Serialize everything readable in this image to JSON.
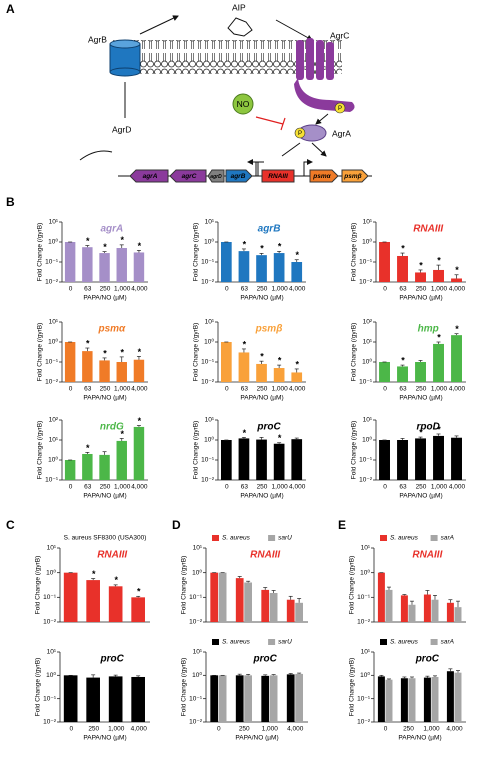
{
  "panel_labels": [
    "A",
    "B",
    "C",
    "D",
    "E"
  ],
  "diagram": {
    "signal": "AIP",
    "receptor": "AgrC",
    "exporter": "AgrB",
    "precursor": "AgrD",
    "inhibitor": "NO",
    "phospho_1": "P",
    "phospho_2": "P",
    "regulator": "AgrA",
    "genes": [
      "agrA",
      "agrC",
      "agrD",
      "agrB",
      "RNAIII",
      "psmα",
      "psmβ"
    ]
  },
  "chart_data": [
    {
      "type": "bar",
      "title": "agrA",
      "title_color": "#a58fc8",
      "color": "#a58fc8",
      "log_y": true,
      "categories": [
        "0",
        "63",
        "250",
        "1,000",
        "4,000"
      ],
      "values": [
        1,
        0.55,
        0.28,
        0.5,
        0.3
      ],
      "errors": [
        0,
        0.12,
        0.05,
        0.22,
        0.08
      ],
      "annotations": [
        {
          "category": "63",
          "text": "*"
        },
        {
          "category": "250",
          "text": "*"
        },
        {
          "category": "1,000",
          "text": "*"
        },
        {
          "category": "4,000",
          "text": "*"
        }
      ],
      "ylim": [
        0.01,
        10
      ],
      "yticks": [
        {
          "value": 0.01,
          "label": "10⁻²"
        },
        {
          "value": 0.1,
          "label": "10⁻¹"
        },
        {
          "value": 1,
          "label": "10⁰"
        },
        {
          "value": 10,
          "label": "10¹"
        }
      ],
      "ylabel": "Fold Change (/gyrB)",
      "xlabel": "PAPA/NO (µM)"
    },
    {
      "type": "bar",
      "title": "agrB",
      "title_color": "#1f77c0",
      "color": "#1f77c0",
      "log_y": true,
      "categories": [
        "0",
        "63",
        "250",
        "1,000",
        "4,000"
      ],
      "values": [
        1,
        0.35,
        0.22,
        0.28,
        0.1
      ],
      "errors": [
        0,
        0.1,
        0.05,
        0.06,
        0.03
      ],
      "annotations": [
        {
          "category": "63",
          "text": "*"
        },
        {
          "category": "250",
          "text": "*"
        },
        {
          "category": "1,000",
          "text": "*"
        },
        {
          "category": "4,000",
          "text": "*"
        }
      ],
      "ylim": [
        0.01,
        10
      ],
      "yticks": [
        {
          "value": 0.01,
          "label": "10⁻²"
        },
        {
          "value": 0.1,
          "label": "10⁻¹"
        },
        {
          "value": 1,
          "label": "10⁰"
        },
        {
          "value": 10,
          "label": "10¹"
        }
      ],
      "ylabel": "Fold Change (/gyrB)",
      "xlabel": "PAPA/NO (µM)"
    },
    {
      "type": "bar",
      "title": "RNAIII",
      "title_color": "#e8312a",
      "color": "#e8312a",
      "log_y": true,
      "categories": [
        "0",
        "63",
        "250",
        "1,000",
        "4,000"
      ],
      "values": [
        1,
        0.2,
        0.03,
        0.04,
        0.015
      ],
      "errors": [
        0,
        0.08,
        0.01,
        0.03,
        0.008
      ],
      "annotations": [
        {
          "category": "63",
          "text": "*"
        },
        {
          "category": "250",
          "text": "*"
        },
        {
          "category": "1,000",
          "text": "*"
        },
        {
          "category": "4,000",
          "text": "*"
        }
      ],
      "ylim": [
        0.01,
        10
      ],
      "yticks": [
        {
          "value": 0.01,
          "label": "10⁻²"
        },
        {
          "value": 0.1,
          "label": "10⁻¹"
        },
        {
          "value": 1,
          "label": "10⁰"
        },
        {
          "value": 10,
          "label": "10¹"
        }
      ],
      "ylabel": "Fold Change (/gyrB)",
      "xlabel": "PAPA/NO (µM)"
    },
    {
      "type": "bar",
      "title": "psmα",
      "title_color": "#f07b27",
      "color": "#f07b27",
      "log_y": true,
      "categories": [
        "0",
        "63",
        "250",
        "1,000",
        "4,000"
      ],
      "values": [
        1,
        0.35,
        0.12,
        0.1,
        0.13
      ],
      "errors": [
        0,
        0.15,
        0.04,
        0.08,
        0.06
      ],
      "annotations": [
        {
          "category": "63",
          "text": "*"
        },
        {
          "category": "250",
          "text": "*"
        },
        {
          "category": "1,000",
          "text": "*"
        },
        {
          "category": "4,000",
          "text": "*"
        }
      ],
      "ylim": [
        0.01,
        10
      ],
      "yticks": [
        {
          "value": 0.01,
          "label": "10⁻²"
        },
        {
          "value": 0.1,
          "label": "10⁻¹"
        },
        {
          "value": 1,
          "label": "10⁰"
        },
        {
          "value": 10,
          "label": "10¹"
        }
      ],
      "ylabel": "Fold Change (/gyrB)",
      "xlabel": "PAPA/NO (µM)"
    },
    {
      "type": "bar",
      "title": "psmβ",
      "title_color": "#f9a13a",
      "color": "#f9a13a",
      "log_y": true,
      "categories": [
        "0",
        "63",
        "250",
        "1,000",
        "4,000"
      ],
      "values": [
        1,
        0.3,
        0.08,
        0.05,
        0.03
      ],
      "errors": [
        0,
        0.15,
        0.03,
        0.02,
        0.015
      ],
      "annotations": [
        {
          "category": "63",
          "text": "*"
        },
        {
          "category": "250",
          "text": "*"
        },
        {
          "category": "1,000",
          "text": "*"
        },
        {
          "category": "4,000",
          "text": "*"
        }
      ],
      "ylim": [
        0.01,
        10
      ],
      "yticks": [
        {
          "value": 0.01,
          "label": "10⁻²"
        },
        {
          "value": 0.1,
          "label": "10⁻¹"
        },
        {
          "value": 1,
          "label": "10⁰"
        },
        {
          "value": 10,
          "label": "10¹"
        }
      ],
      "ylabel": "Fold Change (/gyrB)",
      "xlabel": "PAPA/NO (µM)"
    },
    {
      "type": "bar",
      "title": "hmp",
      "title_color": "#4cb748",
      "color": "#4cb748",
      "log_y": true,
      "categories": [
        "0",
        "63",
        "250",
        "1,000",
        "4,000"
      ],
      "values": [
        1,
        0.6,
        1,
        8,
        22
      ],
      "errors": [
        0,
        0.1,
        0.2,
        2,
        4
      ],
      "annotations": [
        {
          "category": "63",
          "text": "*"
        },
        {
          "category": "1,000",
          "text": "*"
        },
        {
          "category": "4,000",
          "text": "*"
        }
      ],
      "ylim": [
        0.1,
        100
      ],
      "yticks": [
        {
          "value": 0.1,
          "label": "10⁻¹"
        },
        {
          "value": 1,
          "label": "10⁰"
        },
        {
          "value": 10,
          "label": "10¹"
        },
        {
          "value": 100,
          "label": "10²"
        }
      ],
      "ylabel": "Fold Change (/gyrB)",
      "xlabel": "PAPA/NO (µM)"
    },
    {
      "type": "bar",
      "title": "nrdG",
      "title_color": "#4cb748",
      "color": "#4cb748",
      "log_y": true,
      "categories": [
        "0",
        "63",
        "250",
        "1,000",
        "4,000"
      ],
      "values": [
        1,
        2,
        1.8,
        9,
        45
      ],
      "errors": [
        0,
        0.4,
        0.8,
        3,
        8
      ],
      "annotations": [
        {
          "category": "63",
          "text": "*"
        },
        {
          "category": "1,000",
          "text": "*"
        },
        {
          "category": "4,000",
          "text": "*"
        }
      ],
      "ylim": [
        0.1,
        100
      ],
      "yticks": [
        {
          "value": 0.1,
          "label": "10⁻¹"
        },
        {
          "value": 1,
          "label": "10⁰"
        },
        {
          "value": 10,
          "label": "10¹"
        },
        {
          "value": 100,
          "label": "10²"
        }
      ],
      "ylabel": "Fold Change (/gyrB)",
      "xlabel": "PAPA/NO (µM)"
    },
    {
      "type": "bar",
      "title": "proC",
      "title_color": "#000000",
      "color": "#000000",
      "log_y": true,
      "categories": [
        "0",
        "63",
        "250",
        "1,000",
        "4,000"
      ],
      "values": [
        1,
        1.2,
        1.05,
        0.65,
        1.1
      ],
      "errors": [
        0,
        0.15,
        0.3,
        0.08,
        0.15
      ],
      "annotations": [
        {
          "category": "63",
          "text": "*"
        },
        {
          "category": "1,000",
          "text": "*"
        }
      ],
      "ylim": [
        0.01,
        10
      ],
      "yticks": [
        {
          "value": 0.01,
          "label": "10⁻²"
        },
        {
          "value": 0.1,
          "label": "10⁻¹"
        },
        {
          "value": 1,
          "label": "10⁰"
        },
        {
          "value": 10,
          "label": "10¹"
        }
      ],
      "ylabel": "Fold Change (/gyrB)",
      "xlabel": "PAPA/NO (µM)"
    },
    {
      "type": "bar",
      "title": "rpoD",
      "title_color": "#000000",
      "color": "#000000",
      "log_y": true,
      "categories": [
        "0",
        "63",
        "250",
        "1,000",
        "4,000"
      ],
      "values": [
        1,
        1,
        1.2,
        1.6,
        1.3
      ],
      "errors": [
        0,
        0.2,
        0.2,
        0.4,
        0.3
      ],
      "annotations": [
        {
          "category": "250",
          "text": "*"
        },
        {
          "category": "1,000",
          "text": "*"
        }
      ],
      "ylim": [
        0.01,
        10
      ],
      "yticks": [
        {
          "value": 0.01,
          "label": "10⁻²"
        },
        {
          "value": 0.1,
          "label": "10⁻¹"
        },
        {
          "value": 1,
          "label": "10⁰"
        },
        {
          "value": 10,
          "label": "10¹"
        }
      ],
      "ylabel": "Fold Change (/gyrB)",
      "xlabel": "PAPA/NO (µM)"
    },
    {
      "type": "bar",
      "title": "RNAIII",
      "subtitle": "S. aureus SF8300 (USA300)",
      "title_color": "#e8312a",
      "color": "#e8312a",
      "log_y": true,
      "categories": [
        null,
        null,
        null,
        null
      ],
      "values": [
        1,
        0.5,
        0.28,
        0.1
      ],
      "errors": [
        0,
        0.08,
        0.04,
        0.01
      ],
      "annotations": [
        {
          "category": 1,
          "text": "*"
        },
        {
          "category": 2,
          "text": "*"
        },
        {
          "category": 3,
          "text": "*"
        }
      ],
      "ylim": [
        0.01,
        10
      ],
      "yticks": [
        {
          "value": 0.01,
          "label": "10⁻²"
        },
        {
          "value": 0.1,
          "label": "10⁻¹"
        },
        {
          "value": 1,
          "label": "10⁰"
        },
        {
          "value": 10,
          "label": "10¹"
        }
      ],
      "ylabel": "Fold Change (/gyrB)"
    },
    {
      "type": "bar",
      "title": "proC",
      "title_color": "#000000",
      "color": "#000000",
      "log_y": true,
      "categories": [
        "0",
        "250",
        "1,000",
        "4,000"
      ],
      "values": [
        1,
        0.8,
        0.9,
        0.85
      ],
      "errors": [
        0,
        0.25,
        0.12,
        0.1
      ],
      "ylim": [
        0.01,
        10
      ],
      "yticks": [
        {
          "value": 0.01,
          "label": "10⁻²"
        },
        {
          "value": 0.1,
          "label": "10⁻¹"
        },
        {
          "value": 1,
          "label": "10⁰"
        },
        {
          "value": 10,
          "label": "10¹"
        }
      ],
      "ylabel": "Fold Change (/gyrB)",
      "xlabel": "PAPA/NO (µM)"
    },
    {
      "type": "bar",
      "title": "RNAIII",
      "title_color": "#e8312a",
      "log_y": true,
      "categories": [
        null,
        null,
        null,
        null
      ],
      "series": [
        {
          "name": "S. aureus",
          "color": "#e8312a",
          "values": [
            1,
            0.6,
            0.2,
            0.08
          ],
          "errors": [
            0,
            0.1,
            0.05,
            0.03
          ]
        },
        {
          "name": "sarU",
          "color": "#a6a6a6",
          "values": [
            1,
            0.4,
            0.15,
            0.06
          ],
          "errors": [
            0,
            0.05,
            0.04,
            0.03
          ]
        }
      ],
      "ylim": [
        0.01,
        10
      ],
      "yticks": [
        {
          "value": 0.01,
          "label": "10⁻²"
        },
        {
          "value": 0.1,
          "label": "10⁻¹"
        },
        {
          "value": 1,
          "label": "10⁰"
        },
        {
          "value": 10,
          "label": "10¹"
        }
      ],
      "ylabel": "Fold Change (/gyrB)"
    },
    {
      "type": "bar",
      "title": "proC",
      "title_color": "#000000",
      "log_y": true,
      "categories": [
        "0",
        "250",
        "1,000",
        "4,000"
      ],
      "series": [
        {
          "name": "S. aureus",
          "color": "#000000",
          "values": [
            1,
            1,
            0.95,
            1.1
          ],
          "errors": [
            0,
            0.12,
            0.1,
            0.1
          ]
        },
        {
          "name": "sarU",
          "color": "#a6a6a6",
          "values": [
            1,
            1,
            1,
            1.15
          ],
          "errors": [
            0,
            0.1,
            0.08,
            0.1
          ]
        }
      ],
      "ylim": [
        0.01,
        10
      ],
      "yticks": [
        {
          "value": 0.01,
          "label": "10⁻²"
        },
        {
          "value": 0.1,
          "label": "10⁻¹"
        },
        {
          "value": 1,
          "label": "10⁰"
        },
        {
          "value": 10,
          "label": "10¹"
        }
      ],
      "ylabel": "Fold Change (/gyrB)",
      "xlabel": "PAPA/NO (µM)"
    },
    {
      "type": "bar",
      "title": "RNAIII",
      "title_color": "#e8312a",
      "log_y": true,
      "categories": [
        null,
        null,
        null,
        null
      ],
      "series": [
        {
          "name": "S. aureus",
          "color": "#e8312a",
          "values": [
            1,
            0.12,
            0.13,
            0.06
          ],
          "errors": [
            0,
            0.01,
            0.06,
            0.02
          ]
        },
        {
          "name": "sarA",
          "color": "#a6a6a6",
          "values": [
            0.2,
            0.05,
            0.08,
            0.04
          ],
          "errors": [
            0.06,
            0.02,
            0.04,
            0.03
          ]
        }
      ],
      "ylim": [
        0.01,
        10
      ],
      "yticks": [
        {
          "value": 0.01,
          "label": "10⁻²"
        },
        {
          "value": 0.1,
          "label": "10⁻¹"
        },
        {
          "value": 1,
          "label": "10⁰"
        },
        {
          "value": 10,
          "label": "10¹"
        }
      ],
      "ylabel": "Fold Change (/gyrB)"
    },
    {
      "type": "bar",
      "title": "proC",
      "title_color": "#000000",
      "log_y": true,
      "categories": [
        "0",
        "250",
        "1,000",
        "4,000"
      ],
      "series": [
        {
          "name": "S. aureus",
          "color": "#000000",
          "values": [
            0.9,
            0.75,
            0.8,
            1.5
          ],
          "errors": [
            0.1,
            0.1,
            0.12,
            0.4
          ]
        },
        {
          "name": "sarA",
          "color": "#a6a6a6",
          "values": [
            0.65,
            0.75,
            0.85,
            1.3
          ],
          "errors": [
            0.05,
            0.1,
            0.1,
            0.3
          ]
        }
      ],
      "ylim": [
        0.01,
        10
      ],
      "yticks": [
        {
          "value": 0.01,
          "label": "10⁻²"
        },
        {
          "value": 0.1,
          "label": "10⁻¹"
        },
        {
          "value": 1,
          "label": "10⁰"
        },
        {
          "value": 10,
          "label": "10¹"
        }
      ],
      "ylabel": "Fold Change (/gyrB)",
      "xlabel": "PAPA/NO (µM)"
    }
  ]
}
